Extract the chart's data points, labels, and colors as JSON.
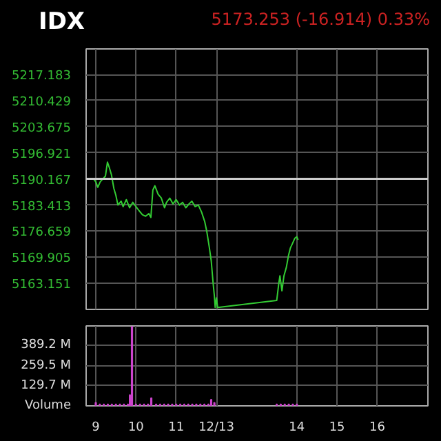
{
  "chart_data": [
    {
      "type": "line",
      "title": "IDX",
      "annotations": [
        "5173.253 (-16.914) 0.33%"
      ],
      "x": [
        8.95,
        9.0,
        9.05,
        9.11,
        9.18,
        9.24,
        9.29,
        9.34,
        9.39,
        9.45,
        9.5,
        9.55,
        9.63,
        9.68,
        9.76,
        9.84,
        9.92,
        10.0,
        10.08,
        10.16,
        10.24,
        10.32,
        10.37,
        10.42,
        10.47,
        10.55,
        10.63,
        10.71,
        10.76,
        10.84,
        10.92,
        11.0,
        11.08,
        11.16,
        11.24,
        11.32,
        11.39,
        11.47,
        11.55,
        11.63,
        11.71,
        11.76,
        11.82,
        11.87,
        11.92,
        11.95,
        11.97,
        12.0,
        12.03,
        13.5,
        13.55,
        13.58,
        13.63,
        13.68,
        13.74,
        13.79,
        13.84,
        13.89,
        13.95,
        14.0,
        14.03
      ],
      "series": [
        {
          "color": "#33cc33",
          "values": [
            5190.1,
            5189.4,
            5188.0,
            5189.4,
            5190.2,
            5190.9,
            5194.5,
            5193.0,
            5191.2,
            5187.7,
            5185.9,
            5183.4,
            5184.4,
            5183.0,
            5184.8,
            5182.7,
            5184.1,
            5183.0,
            5181.9,
            5180.9,
            5180.5,
            5181.2,
            5180.2,
            5187.3,
            5188.4,
            5186.2,
            5185.2,
            5182.7,
            5184.1,
            5185.2,
            5183.7,
            5184.8,
            5183.4,
            5184.1,
            5182.7,
            5183.7,
            5184.4,
            5183.0,
            5183.4,
            5181.6,
            5179.1,
            5176.6,
            5172.7,
            5169.1,
            5163.0,
            5159.8,
            5156.9,
            5159.4,
            5156.9,
            5158.7,
            5163.0,
            5165.1,
            5161.2,
            5165.1,
            5167.3,
            5170.2,
            5172.3,
            5173.4,
            5174.8,
            5175.2,
            5174.4
          ]
        }
      ],
      "xlim": [
        8.76,
        17.26
      ],
      "xticks": [
        9,
        10,
        11,
        12,
        14,
        15,
        16
      ],
      "ylim": [
        5156.4,
        5223.8
      ],
      "yticks": [
        5163.151,
        5169.905,
        5176.659,
        5183.413,
        5190.167,
        5196.921,
        5203.675,
        5210.429,
        5217.183
      ],
      "ref_lines": [
        {
          "axis": "y",
          "value": 5190.167,
          "color": "#cccccc"
        }
      ],
      "grid": true,
      "tick_labels": "y"
    },
    {
      "type": "bar",
      "ylabel": "Volume",
      "x": [
        9.0,
        9.1,
        9.2,
        9.3,
        9.4,
        9.5,
        9.6,
        9.7,
        9.8,
        9.85,
        9.9,
        10.0,
        10.1,
        10.2,
        10.3,
        10.38,
        10.5,
        10.6,
        10.7,
        10.8,
        10.9,
        11.0,
        11.1,
        11.2,
        11.3,
        11.4,
        11.5,
        11.6,
        11.7,
        11.8,
        11.87,
        11.95,
        13.5,
        13.6,
        13.7,
        13.8,
        13.9,
        14.0
      ],
      "series": [
        {
          "color": "#cc44cc",
          "values": [
            20,
            10,
            10,
            10,
            10,
            10,
            10,
            10,
            10,
            70,
            510,
            10,
            10,
            10,
            10,
            50,
            10,
            10,
            10,
            10,
            10,
            10,
            10,
            10,
            10,
            10,
            10,
            10,
            10,
            10,
            40,
            20,
            10,
            10,
            10,
            10,
            10,
            10
          ]
        }
      ],
      "xlim": [
        8.76,
        17.26
      ],
      "xticks": [
        9,
        10,
        11,
        {
          "value": 12,
          "label": "12/13"
        },
        14,
        15,
        16
      ],
      "ylim": [
        0,
        515
      ],
      "yticks": [
        {
          "value": 129.7,
          "label": "129.7 M"
        },
        {
          "value": 259.5,
          "label": "259.5 M"
        },
        {
          "value": 389.2,
          "label": "389.2 M"
        }
      ],
      "grid": true
    }
  ]
}
